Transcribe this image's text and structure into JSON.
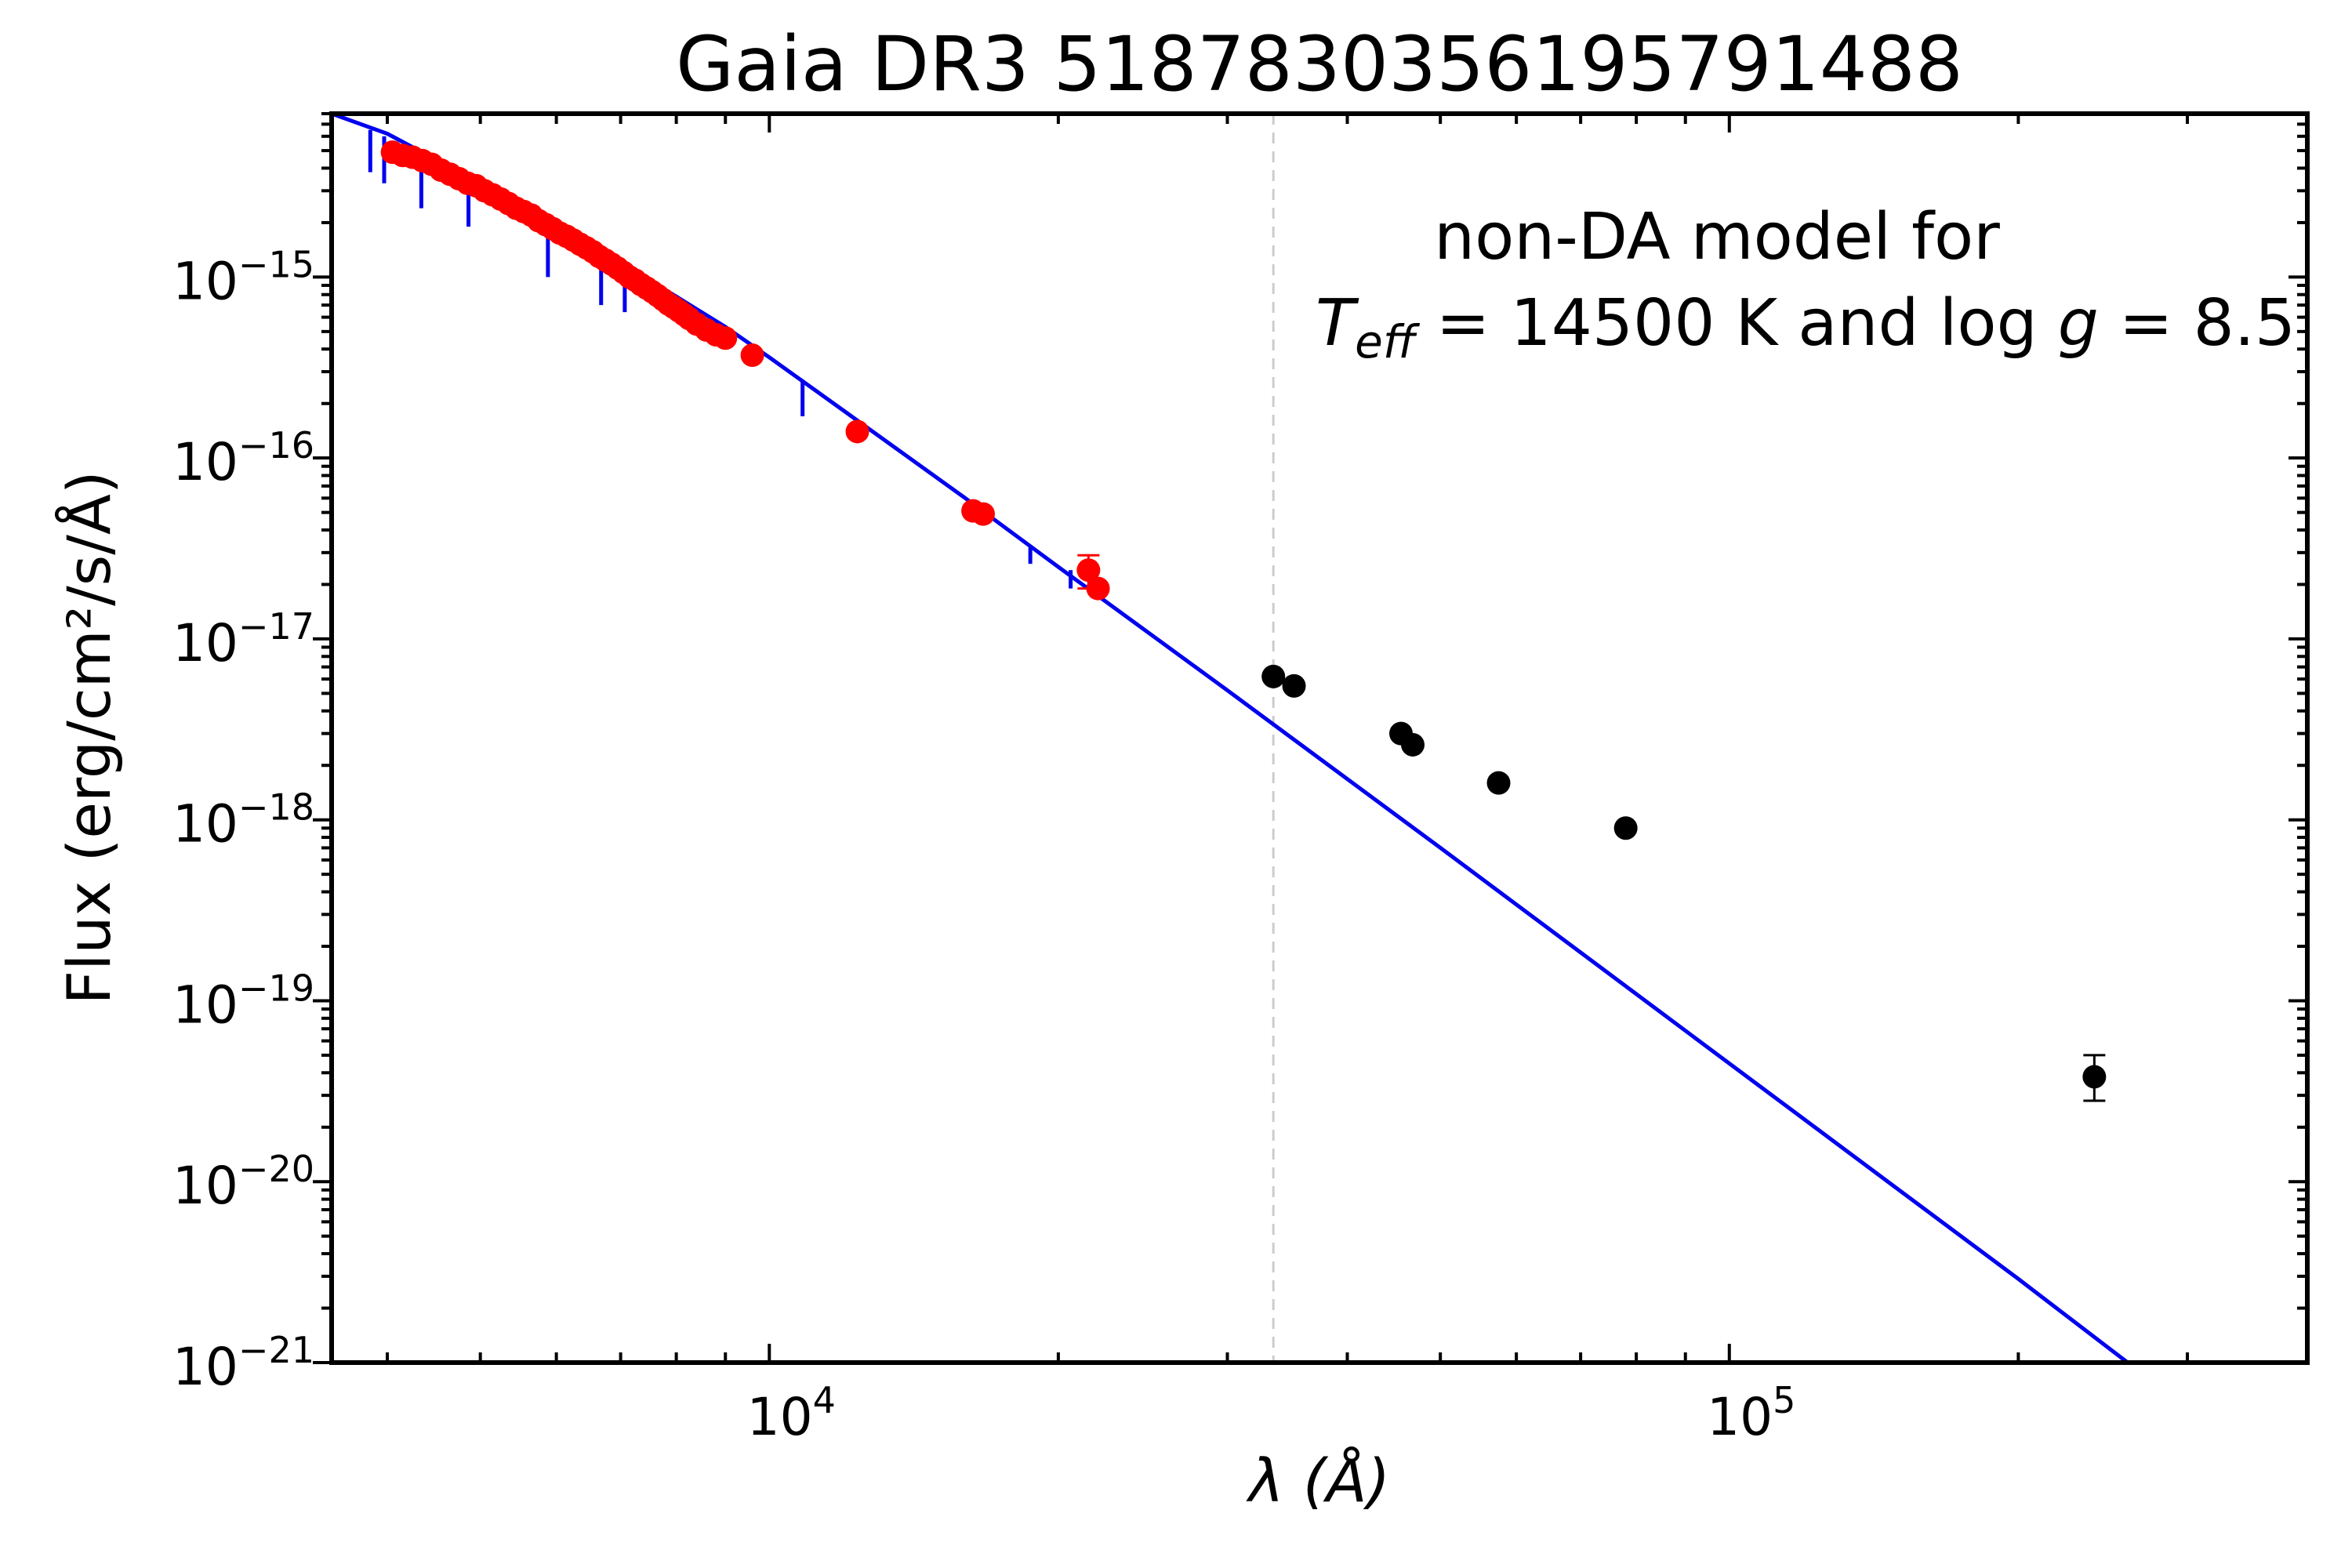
{
  "chart_data": {
    "type": "scatter",
    "title": "Gaia DR3 5187830356195791488",
    "xlabel": "λ (Å)",
    "ylabel": "Flux (erg/cm²/s/Å)",
    "x_scale": "log",
    "y_scale": "log",
    "xlim": [
      3500,
      400000
    ],
    "ylim": [
      1e-21,
      8e-15
    ],
    "grid": false,
    "x_ticks": [
      {
        "value": 10000,
        "base": "10",
        "exp": "4"
      },
      {
        "value": 100000,
        "base": "10",
        "exp": "5"
      }
    ],
    "y_ticks": [
      {
        "value": 1e-15,
        "base": "10",
        "exp": "−15"
      },
      {
        "value": 1e-16,
        "base": "10",
        "exp": "−16"
      },
      {
        "value": 1e-17,
        "base": "10",
        "exp": "−17"
      },
      {
        "value": 1e-18,
        "base": "10",
        "exp": "−18"
      },
      {
        "value": 1e-19,
        "base": "10",
        "exp": "−19"
      },
      {
        "value": 1e-20,
        "base": "10",
        "exp": "−20"
      },
      {
        "value": 1e-21,
        "base": "10",
        "exp": "−21"
      }
    ],
    "annotation": {
      "line1": "non-DA model for",
      "teff_symbol": "T",
      "teff_sub": "eff",
      "teff_rest": " = 14500 K and log ",
      "g_symbol": "g",
      "g_rest": " = 8.5"
    },
    "vline_x": 33500,
    "colors": {
      "model": "#0000ee",
      "red_points": "#ff0000",
      "black_points": "#000000",
      "vline": "#cccccc"
    },
    "model": {
      "x": [
        3500,
        4000,
        5000,
        6000,
        7000,
        8000,
        9000,
        10000,
        12000,
        16000,
        20000,
        30000,
        50000,
        100000,
        200000,
        260000
      ],
      "y": [
        8e-15,
        6.2e-15,
        3.3e-15,
        1.9e-15,
        1.2e-15,
        7.8e-16,
        5.3e-16,
        3.6e-16,
        1.8e-16,
        6e-17,
        2.5e-17,
        5.2e-18,
        7e-19,
        4.5e-20,
        2.9e-21,
        1e-21
      ]
    },
    "model_absorption_lines": [
      {
        "x": 3840,
        "y": 6.5e-15,
        "depth": 3.8e-15
      },
      {
        "x": 3970,
        "y": 6e-15,
        "depth": 3.3e-15
      },
      {
        "x": 4340,
        "y": 4.8e-15,
        "depth": 2.4e-15
      },
      {
        "x": 4860,
        "y": 3.6e-15,
        "depth": 1.9e-15
      },
      {
        "x": 5880,
        "y": 2e-15,
        "depth": 1e-15
      },
      {
        "x": 6680,
        "y": 1.3e-15,
        "depth": 7e-16
      },
      {
        "x": 7070,
        "y": 1.1e-15,
        "depth": 6.4e-16
      },
      {
        "x": 10830,
        "y": 2.7e-16,
        "depth": 1.7e-16
      },
      {
        "x": 18700,
        "y": 3.2e-17,
        "depth": 2.6e-17
      },
      {
        "x": 20600,
        "y": 2.4e-17,
        "depth": 1.9e-17
      }
    ],
    "series": [
      {
        "color": "red",
        "points": [
          {
            "x": 4050,
            "y": 4.9e-15
          },
          {
            "x": 4150,
            "y": 4.7e-15
          },
          {
            "x": 4250,
            "y": 4.6e-15
          },
          {
            "x": 4350,
            "y": 4.4e-15
          },
          {
            "x": 4450,
            "y": 4.2e-15
          },
          {
            "x": 4550,
            "y": 3.9e-15
          },
          {
            "x": 4650,
            "y": 3.7e-15
          },
          {
            "x": 4750,
            "y": 3.5e-15
          },
          {
            "x": 4850,
            "y": 3.3e-15
          },
          {
            "x": 4950,
            "y": 3.2e-15
          },
          {
            "x": 5050,
            "y": 3e-15
          },
          {
            "x": 5150,
            "y": 2.85e-15
          },
          {
            "x": 5250,
            "y": 2.7e-15
          },
          {
            "x": 5350,
            "y": 2.55e-15
          },
          {
            "x": 5450,
            "y": 2.4e-15
          },
          {
            "x": 5550,
            "y": 2.3e-15
          },
          {
            "x": 5650,
            "y": 2.2e-15
          },
          {
            "x": 5750,
            "y": 2.05e-15
          },
          {
            "x": 5850,
            "y": 1.95e-15
          },
          {
            "x": 5950,
            "y": 1.85e-15
          },
          {
            "x": 6050,
            "y": 1.75e-15
          },
          {
            "x": 6150,
            "y": 1.68e-15
          },
          {
            "x": 6250,
            "y": 1.6e-15
          },
          {
            "x": 6350,
            "y": 1.52e-15
          },
          {
            "x": 6450,
            "y": 1.45e-15
          },
          {
            "x": 6550,
            "y": 1.38e-15
          },
          {
            "x": 6650,
            "y": 1.3e-15
          },
          {
            "x": 6750,
            "y": 1.24e-15
          },
          {
            "x": 6850,
            "y": 1.18e-15
          },
          {
            "x": 6950,
            "y": 1.12e-15
          },
          {
            "x": 7050,
            "y": 1.06e-15
          },
          {
            "x": 7150,
            "y": 1e-15
          },
          {
            "x": 7250,
            "y": 9.6e-16
          },
          {
            "x": 7350,
            "y": 9.1e-16
          },
          {
            "x": 7450,
            "y": 8.7e-16
          },
          {
            "x": 7550,
            "y": 8.3e-16
          },
          {
            "x": 7650,
            "y": 7.9e-16
          },
          {
            "x": 7750,
            "y": 7.5e-16
          },
          {
            "x": 7850,
            "y": 7.1e-16
          },
          {
            "x": 7950,
            "y": 6.8e-16
          },
          {
            "x": 8050,
            "y": 6.5e-16
          },
          {
            "x": 8150,
            "y": 6.2e-16
          },
          {
            "x": 8250,
            "y": 5.9e-16
          },
          {
            "x": 8400,
            "y": 5.5e-16
          },
          {
            "x": 8600,
            "y": 5.1e-16
          },
          {
            "x": 8800,
            "y": 4.8e-16
          },
          {
            "x": 9000,
            "y": 4.6e-16
          },
          {
            "x": 9600,
            "y": 3.7e-16
          },
          {
            "x": 12350,
            "y": 1.4e-16
          },
          {
            "x": 16300,
            "y": 5.1e-17
          },
          {
            "x": 16700,
            "y": 4.9e-17
          },
          {
            "x": 21500,
            "y": 2.4e-17,
            "err": 5e-18
          },
          {
            "x": 22000,
            "y": 1.9e-17
          }
        ]
      },
      {
        "color": "black",
        "points": [
          {
            "x": 33500,
            "y": 6.2e-18
          },
          {
            "x": 35200,
            "y": 5.5e-18
          },
          {
            "x": 45500,
            "y": 3e-18
          },
          {
            "x": 46800,
            "y": 2.6e-18
          },
          {
            "x": 57500,
            "y": 1.6e-18
          },
          {
            "x": 78000,
            "y": 9e-19
          },
          {
            "x": 240000,
            "y": 3.8e-20,
            "err_lo": 2.8e-20,
            "err_hi": 5e-20
          }
        ]
      }
    ]
  }
}
